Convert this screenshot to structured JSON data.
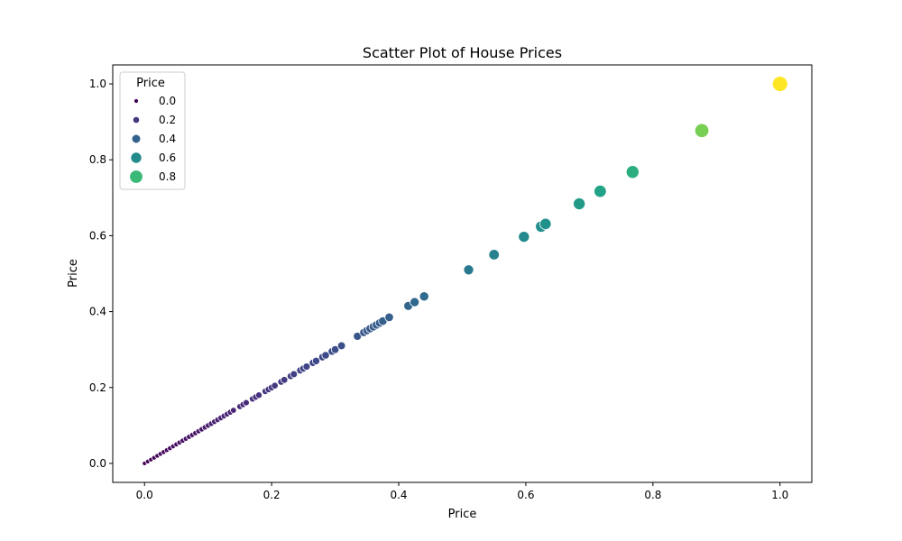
{
  "chart_data": {
    "type": "scatter",
    "title": "Scatter Plot of House Prices",
    "xlabel": "Price",
    "ylabel": "Price",
    "xlim": [
      -0.05,
      1.05
    ],
    "ylim": [
      -0.05,
      1.05
    ],
    "xticks": [
      0.0,
      0.2,
      0.4,
      0.6,
      0.8,
      1.0
    ],
    "yticks": [
      0.0,
      0.2,
      0.4,
      0.6,
      0.8,
      1.0
    ],
    "xtick_labels": [
      "0.0",
      "0.2",
      "0.4",
      "0.6",
      "0.8",
      "1.0"
    ],
    "ytick_labels": [
      "0.0",
      "0.2",
      "0.4",
      "0.6",
      "0.8",
      "1.0"
    ],
    "grid": false,
    "colormap": "viridis",
    "hue": "Price",
    "size": "Price",
    "legend": {
      "title": "Price",
      "placement": "top-left",
      "entries": [
        {
          "label": "0.0",
          "value": 0.0
        },
        {
          "label": "0.2",
          "value": 0.2
        },
        {
          "label": "0.4",
          "value": 0.4
        },
        {
          "label": "0.6",
          "value": 0.6
        },
        {
          "label": "0.8",
          "value": 0.8
        }
      ]
    },
    "points": [
      [
        0.0,
        0.0
      ],
      [
        0.005,
        0.005
      ],
      [
        0.01,
        0.01
      ],
      [
        0.015,
        0.015
      ],
      [
        0.02,
        0.02
      ],
      [
        0.025,
        0.025
      ],
      [
        0.03,
        0.03
      ],
      [
        0.035,
        0.035
      ],
      [
        0.04,
        0.04
      ],
      [
        0.045,
        0.045
      ],
      [
        0.05,
        0.05
      ],
      [
        0.055,
        0.055
      ],
      [
        0.06,
        0.06
      ],
      [
        0.065,
        0.065
      ],
      [
        0.07,
        0.07
      ],
      [
        0.075,
        0.075
      ],
      [
        0.08,
        0.08
      ],
      [
        0.085,
        0.085
      ],
      [
        0.09,
        0.09
      ],
      [
        0.095,
        0.095
      ],
      [
        0.1,
        0.1
      ],
      [
        0.105,
        0.105
      ],
      [
        0.11,
        0.11
      ],
      [
        0.115,
        0.115
      ],
      [
        0.12,
        0.12
      ],
      [
        0.125,
        0.125
      ],
      [
        0.13,
        0.13
      ],
      [
        0.135,
        0.135
      ],
      [
        0.14,
        0.14
      ],
      [
        0.15,
        0.15
      ],
      [
        0.155,
        0.155
      ],
      [
        0.16,
        0.16
      ],
      [
        0.17,
        0.17
      ],
      [
        0.175,
        0.175
      ],
      [
        0.18,
        0.18
      ],
      [
        0.19,
        0.19
      ],
      [
        0.195,
        0.195
      ],
      [
        0.2,
        0.2
      ],
      [
        0.205,
        0.205
      ],
      [
        0.215,
        0.215
      ],
      [
        0.22,
        0.22
      ],
      [
        0.23,
        0.23
      ],
      [
        0.235,
        0.235
      ],
      [
        0.245,
        0.245
      ],
      [
        0.25,
        0.25
      ],
      [
        0.255,
        0.255
      ],
      [
        0.265,
        0.265
      ],
      [
        0.27,
        0.27
      ],
      [
        0.28,
        0.28
      ],
      [
        0.285,
        0.285
      ],
      [
        0.295,
        0.295
      ],
      [
        0.3,
        0.3
      ],
      [
        0.31,
        0.31
      ],
      [
        0.335,
        0.335
      ],
      [
        0.345,
        0.345
      ],
      [
        0.35,
        0.35
      ],
      [
        0.355,
        0.355
      ],
      [
        0.36,
        0.36
      ],
      [
        0.365,
        0.365
      ],
      [
        0.37,
        0.37
      ],
      [
        0.375,
        0.375
      ],
      [
        0.385,
        0.385
      ],
      [
        0.415,
        0.415
      ],
      [
        0.425,
        0.425
      ],
      [
        0.44,
        0.44
      ],
      [
        0.51,
        0.51
      ],
      [
        0.55,
        0.55
      ],
      [
        0.597,
        0.597
      ],
      [
        0.624,
        0.624
      ],
      [
        0.631,
        0.631
      ],
      [
        0.684,
        0.684
      ],
      [
        0.717,
        0.717
      ],
      [
        0.768,
        0.768
      ],
      [
        0.877,
        0.877
      ],
      [
        1.0,
        1.0
      ]
    ]
  }
}
